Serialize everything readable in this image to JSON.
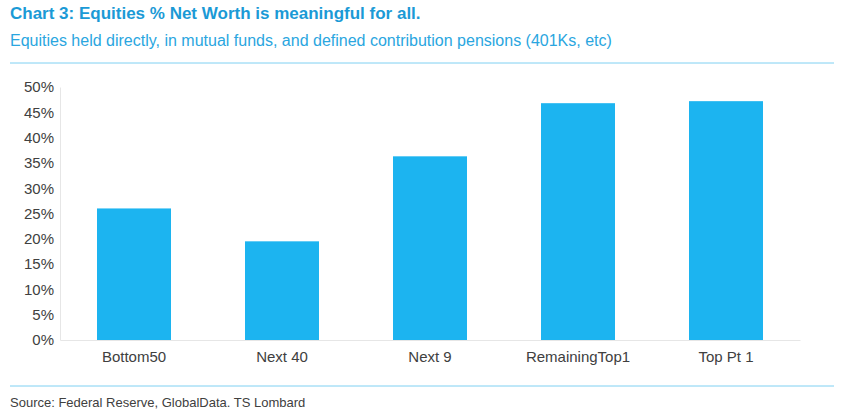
{
  "chart_data": {
    "type": "bar",
    "title": "Chart 3: Equities % Net Worth is meaningful for all.",
    "subtitle": "Equities held directly, in mutual funds, and defined contribution pensions (401Ks, etc)",
    "source": "Source: Federal Reserve, GlobalData. TS Lombard",
    "categories": [
      "Bottom50",
      "Next 40",
      "Next 9",
      "RemainingTop1",
      "Top Pt 1"
    ],
    "values": [
      26,
      19.5,
      36.3,
      46.8,
      47.2
    ],
    "color": "#1cb4f0",
    "ylim": [
      0,
      50
    ],
    "yticks": [
      {
        "value": 0,
        "label": "0%"
      },
      {
        "value": 5,
        "label": "5%"
      },
      {
        "value": 10,
        "label": "10%"
      },
      {
        "value": 15,
        "label": "15%"
      },
      {
        "value": 20,
        "label": "20%"
      },
      {
        "value": 25,
        "label": "25%"
      },
      {
        "value": 30,
        "label": "30%"
      },
      {
        "value": 35,
        "label": "35%"
      },
      {
        "value": 40,
        "label": "40%"
      },
      {
        "value": 45,
        "label": "45%"
      },
      {
        "value": 50,
        "label": "50%"
      }
    ],
    "grid": false
  }
}
